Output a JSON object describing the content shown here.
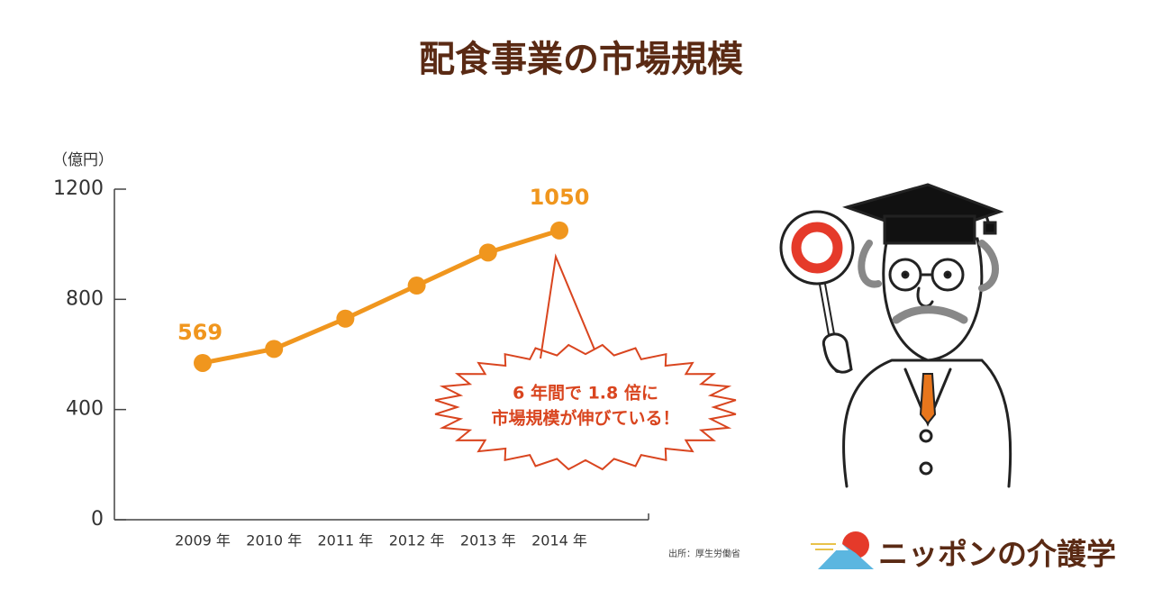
{
  "chart_data": {
    "type": "line",
    "title": "配食事業の市場規模",
    "y_unit": "（億円）",
    "categories": [
      "2009 年",
      "2010 年",
      "2011 年",
      "2012 年",
      "2013 年",
      "2014 年"
    ],
    "values": [
      569,
      620,
      730,
      850,
      970,
      1050
    ],
    "color": "#f0961e",
    "ylim": [
      0,
      1200
    ],
    "yticks": [
      0,
      400,
      800,
      1200
    ],
    "annotation": [
      "6 年間で 1.8 倍に",
      "市場規模が伸びている！"
    ],
    "source": "出所：厚生労働省",
    "logo": "ニッポンの介護学"
  }
}
